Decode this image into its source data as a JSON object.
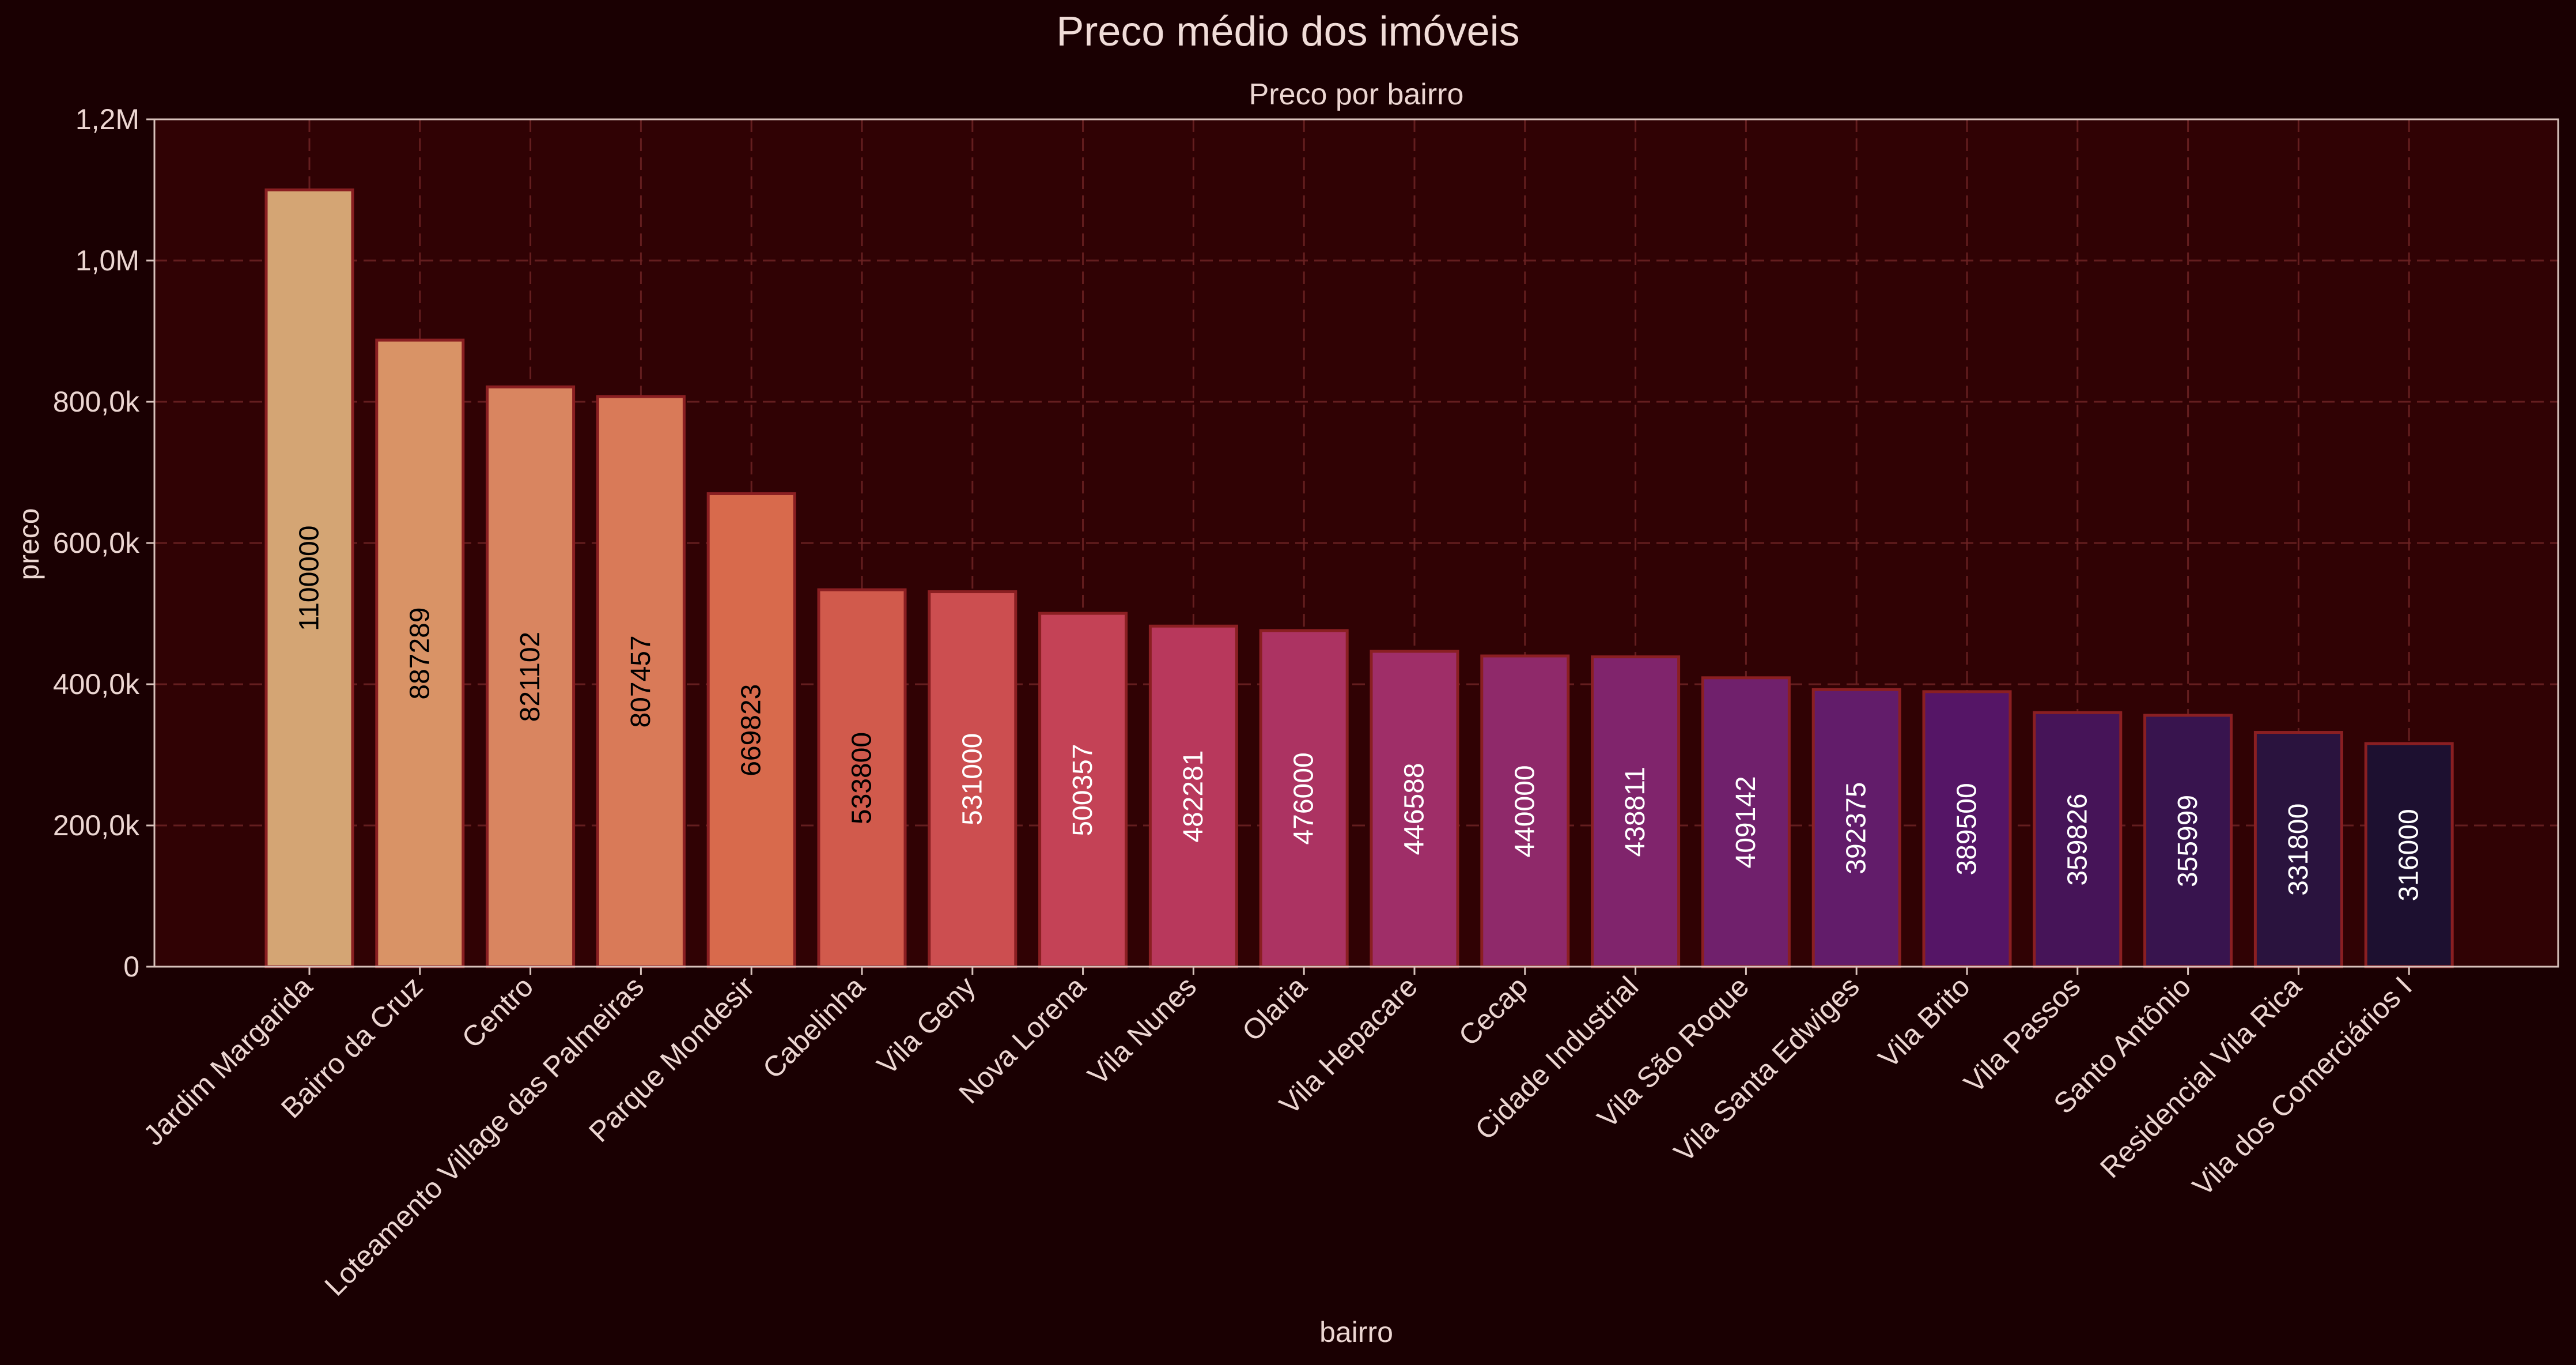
{
  "title": "Preco médio dos imóveis",
  "subtitle": "Preco por bairro",
  "chart_data": {
    "type": "bar",
    "xlabel": "bairro",
    "ylabel": "preco",
    "ylim": [
      0,
      1200000
    ],
    "yticks": [
      0,
      200000,
      400000,
      600000,
      800000,
      1000000,
      1200000
    ],
    "ytick_labels": [
      "0",
      "200,0k",
      "400,0k",
      "600,0k",
      "800,0k",
      "1,0M",
      "1,2M"
    ],
    "grid": true,
    "categories": [
      "Jardim Margarida",
      "Bairro da Cruz",
      "Centro",
      "Loteamento Village das Palmeiras",
      "Parque Mondesir",
      "Cabelinha",
      "Vila Geny",
      "Nova Lorena",
      "Vila Nunes",
      "Olaria",
      "Vila Hepacare",
      "Cecap",
      "Cidade Industrial",
      "Vila São Roque",
      "Vila Santa Edwiges",
      "Vila Brito",
      "Vila Passos",
      "Santo Antônio",
      "Residencial Vila Rica",
      "Vila dos Comerciários I"
    ],
    "values": [
      1100000,
      887289,
      821102,
      807457,
      669823,
      533800,
      531000,
      500357,
      482281,
      476000,
      446588,
      440000,
      438811,
      409142,
      392375,
      389500,
      359826,
      355999,
      331800,
      316000
    ],
    "data_labels": [
      "1100000",
      "887289",
      "821102",
      "807457",
      "669823",
      "533800",
      "531000",
      "500357",
      "482281",
      "476000",
      "446588",
      "440000",
      "438811",
      "409142",
      "392375",
      "389500",
      "359826",
      "355999",
      "331800",
      "316000"
    ],
    "colors": [
      "#d4a574",
      "#d99366",
      "#d98560",
      "#d97a58",
      "#d86a4c",
      "#d15a4c",
      "#cc4e50",
      "#c44256",
      "#b8385c",
      "#ac3362",
      "#9f2e68",
      "#8f296a",
      "#80246c",
      "#70206c",
      "#621c6a",
      "#551566",
      "#461458",
      "#38144e",
      "#2a133e",
      "#1d1030"
    ],
    "label_colors": [
      "#000000",
      "#000000",
      "#000000",
      "#000000",
      "#000000",
      "#000000",
      "#ffffff",
      "#ffffff",
      "#ffffff",
      "#ffffff",
      "#ffffff",
      "#ffffff",
      "#ffffff",
      "#ffffff",
      "#ffffff",
      "#ffffff",
      "#ffffff",
      "#ffffff",
      "#ffffff",
      "#ffffff"
    ]
  }
}
